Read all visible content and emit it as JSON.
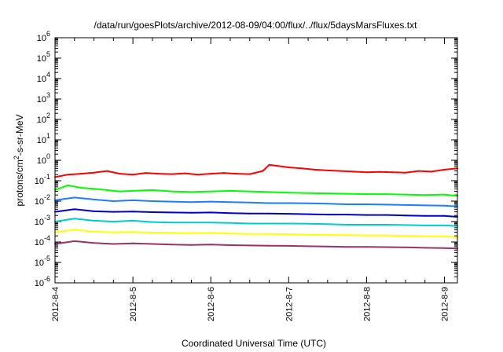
{
  "chart_data": {
    "type": "line",
    "title": "/data/run/goesPlots/archive/2012-08-09/04:00/flux/../flux/5daysMarsFluxes.txt",
    "xlabel": "Coordinated Universal Time (UTC)",
    "ylabel": "protons/cm2-s-sr-MeV",
    "ylabel_parts": {
      "base": "protons/cm",
      "sup": "2",
      "rest": "-s-sr-MeV"
    },
    "yscale": "log",
    "ylim": [
      1e-06,
      1000000.0
    ],
    "y_ticks": [
      {
        "base": "10",
        "exp": "-6",
        "value": -6
      },
      {
        "base": "10",
        "exp": "-5",
        "value": -5
      },
      {
        "base": "10",
        "exp": "-4",
        "value": -4
      },
      {
        "base": "10",
        "exp": "-3",
        "value": -3
      },
      {
        "base": "10",
        "exp": "-2",
        "value": -2
      },
      {
        "base": "10",
        "exp": "-1",
        "value": -1
      },
      {
        "base": "10",
        "exp": "0",
        "value": 0
      },
      {
        "base": "10",
        "exp": "1",
        "value": 1
      },
      {
        "base": "10",
        "exp": "2",
        "value": 2
      },
      {
        "base": "10",
        "exp": "3",
        "value": 3
      },
      {
        "base": "10",
        "exp": "4",
        "value": 4
      },
      {
        "base": "10",
        "exp": "5",
        "value": 5
      },
      {
        "base": "10",
        "exp": "6",
        "value": 6
      }
    ],
    "x_ticks": [
      "2012-8-4",
      "2012-8-5",
      "2012-8-6",
      "2012-8-7",
      "2012-8-8",
      "2012-8-9"
    ],
    "xlim": [
      "2012-08-04T00:00",
      "2012-08-09T04:00"
    ],
    "grid": false,
    "series": [
      {
        "color": "#ff0000",
        "x": [
          "2012-08-04T00:00",
          "2012-08-04T04:00",
          "2012-08-04T08:00",
          "2012-08-04T12:00",
          "2012-08-04T16:00",
          "2012-08-04T20:00",
          "2012-08-05T00:00",
          "2012-08-05T04:00",
          "2012-08-05T08:00",
          "2012-08-05T12:00",
          "2012-08-05T16:00",
          "2012-08-05T20:00",
          "2012-08-06T00:00",
          "2012-08-06T04:00",
          "2012-08-06T08:00",
          "2012-08-06T12:00",
          "2012-08-06T16:00",
          "2012-08-06T18:00",
          "2012-08-07T00:00",
          "2012-08-07T04:00",
          "2012-08-07T08:00",
          "2012-08-07T12:00",
          "2012-08-07T16:00",
          "2012-08-07T20:00",
          "2012-08-08T00:00",
          "2012-08-08T04:00",
          "2012-08-08T08:00",
          "2012-08-08T12:00",
          "2012-08-08T16:00",
          "2012-08-08T20:00",
          "2012-08-09T00:00",
          "2012-08-09T04:00"
        ],
        "values": [
          0.15,
          0.2,
          0.22,
          0.25,
          0.3,
          0.22,
          0.2,
          0.24,
          0.22,
          0.21,
          0.23,
          0.2,
          0.22,
          0.24,
          0.22,
          0.21,
          0.3,
          0.6,
          0.45,
          0.4,
          0.35,
          0.32,
          0.3,
          0.28,
          0.26,
          0.27,
          0.26,
          0.25,
          0.3,
          0.28,
          0.35,
          0.4
        ]
      },
      {
        "color": "#00ff00",
        "x": [
          "2012-08-04T00:00",
          "2012-08-04T04:00",
          "2012-08-04T08:00",
          "2012-08-04T12:00",
          "2012-08-04T16:00",
          "2012-08-04T20:00",
          "2012-08-05T00:00",
          "2012-08-05T06:00",
          "2012-08-05T12:00",
          "2012-08-05T18:00",
          "2012-08-06T00:00",
          "2012-08-06T06:00",
          "2012-08-06T12:00",
          "2012-08-06T18:00",
          "2012-08-07T00:00",
          "2012-08-07T06:00",
          "2012-08-07T12:00",
          "2012-08-07T18:00",
          "2012-08-08T00:00",
          "2012-08-08T06:00",
          "2012-08-08T12:00",
          "2012-08-08T18:00",
          "2012-08-09T00:00",
          "2012-08-09T04:00"
        ],
        "values": [
          0.035,
          0.06,
          0.045,
          0.04,
          0.035,
          0.03,
          0.032,
          0.035,
          0.03,
          0.028,
          0.03,
          0.032,
          0.03,
          0.028,
          0.026,
          0.025,
          0.024,
          0.023,
          0.022,
          0.022,
          0.021,
          0.02,
          0.021,
          0.018
        ]
      },
      {
        "color": "#1e7cff",
        "x": [
          "2012-08-04T00:00",
          "2012-08-04T06:00",
          "2012-08-04T12:00",
          "2012-08-04T18:00",
          "2012-08-05T00:00",
          "2012-08-05T06:00",
          "2012-08-05T12:00",
          "2012-08-05T18:00",
          "2012-08-06T00:00",
          "2012-08-06T06:00",
          "2012-08-06T12:00",
          "2012-08-06T18:00",
          "2012-08-07T00:00",
          "2012-08-07T06:00",
          "2012-08-07T12:00",
          "2012-08-07T18:00",
          "2012-08-08T00:00",
          "2012-08-08T06:00",
          "2012-08-08T12:00",
          "2012-08-08T18:00",
          "2012-08-09T00:00",
          "2012-08-09T04:00"
        ],
        "values": [
          0.011,
          0.015,
          0.012,
          0.01,
          0.011,
          0.01,
          0.0095,
          0.009,
          0.0095,
          0.009,
          0.0085,
          0.008,
          0.008,
          0.0078,
          0.0075,
          0.007,
          0.007,
          0.0068,
          0.0065,
          0.0062,
          0.006,
          0.0055
        ]
      },
      {
        "color": "#0000cc",
        "x": [
          "2012-08-04T00:00",
          "2012-08-04T06:00",
          "2012-08-04T12:00",
          "2012-08-04T18:00",
          "2012-08-05T00:00",
          "2012-08-05T06:00",
          "2012-08-05T12:00",
          "2012-08-05T18:00",
          "2012-08-06T00:00",
          "2012-08-06T06:00",
          "2012-08-06T12:00",
          "2012-08-06T18:00",
          "2012-08-07T00:00",
          "2012-08-07T06:00",
          "2012-08-07T12:00",
          "2012-08-07T18:00",
          "2012-08-08T00:00",
          "2012-08-08T06:00",
          "2012-08-08T12:00",
          "2012-08-08T18:00",
          "2012-08-09T00:00",
          "2012-08-09T04:00"
        ],
        "values": [
          0.003,
          0.004,
          0.0032,
          0.003,
          0.0031,
          0.0029,
          0.0028,
          0.0027,
          0.0028,
          0.0026,
          0.0025,
          0.0025,
          0.0024,
          0.0023,
          0.0022,
          0.0022,
          0.0021,
          0.0021,
          0.002,
          0.0019,
          0.0019,
          0.0017
        ]
      },
      {
        "color": "#00cccc",
        "x": [
          "2012-08-04T00:00",
          "2012-08-04T06:00",
          "2012-08-04T12:00",
          "2012-08-04T18:00",
          "2012-08-05T00:00",
          "2012-08-05T06:00",
          "2012-08-05T12:00",
          "2012-08-05T18:00",
          "2012-08-06T00:00",
          "2012-08-06T06:00",
          "2012-08-06T12:00",
          "2012-08-06T18:00",
          "2012-08-07T00:00",
          "2012-08-07T06:00",
          "2012-08-07T12:00",
          "2012-08-07T18:00",
          "2012-08-08T00:00",
          "2012-08-08T06:00",
          "2012-08-08T12:00",
          "2012-08-08T18:00",
          "2012-08-09T00:00",
          "2012-08-09T04:00"
        ],
        "values": [
          0.001,
          0.0014,
          0.0011,
          0.001,
          0.0011,
          0.00095,
          0.0009,
          0.0009,
          0.0009,
          0.00085,
          0.0008,
          0.0008,
          0.0008,
          0.00078,
          0.00075,
          0.0007,
          0.0007,
          0.0007,
          0.00068,
          0.00065,
          0.00065,
          0.0006
        ]
      },
      {
        "color": "#ffff00",
        "x": [
          "2012-08-04T00:00",
          "2012-08-04T06:00",
          "2012-08-04T12:00",
          "2012-08-04T18:00",
          "2012-08-05T00:00",
          "2012-08-05T06:00",
          "2012-08-05T12:00",
          "2012-08-05T18:00",
          "2012-08-06T00:00",
          "2012-08-06T06:00",
          "2012-08-06T12:00",
          "2012-08-06T18:00",
          "2012-08-07T00:00",
          "2012-08-07T06:00",
          "2012-08-07T12:00",
          "2012-08-07T18:00",
          "2012-08-08T00:00",
          "2012-08-08T06:00",
          "2012-08-08T12:00",
          "2012-08-08T18:00",
          "2012-08-09T00:00",
          "2012-08-09T04:00"
        ],
        "values": [
          0.0003,
          0.0004,
          0.00032,
          0.0003,
          0.00031,
          0.00029,
          0.00028,
          0.00027,
          0.00028,
          0.00026,
          0.00025,
          0.00025,
          0.00024,
          0.00023,
          0.00022,
          0.00022,
          0.00021,
          0.00021,
          0.0002,
          0.00019,
          0.00019,
          0.00017
        ]
      },
      {
        "color": "#993366",
        "x": [
          "2012-08-04T00:00",
          "2012-08-04T06:00",
          "2012-08-04T12:00",
          "2012-08-04T18:00",
          "2012-08-05T00:00",
          "2012-08-05T06:00",
          "2012-08-05T12:00",
          "2012-08-05T18:00",
          "2012-08-06T00:00",
          "2012-08-06T06:00",
          "2012-08-06T12:00",
          "2012-08-06T18:00",
          "2012-08-07T00:00",
          "2012-08-07T06:00",
          "2012-08-07T12:00",
          "2012-08-07T18:00",
          "2012-08-08T00:00",
          "2012-08-08T06:00",
          "2012-08-08T12:00",
          "2012-08-08T18:00",
          "2012-08-09T00:00",
          "2012-08-09T04:00"
        ],
        "values": [
          8e-05,
          0.00011,
          9e-05,
          8e-05,
          8.5e-05,
          8e-05,
          7.5e-05,
          7.2e-05,
          7.5e-05,
          7e-05,
          6.8e-05,
          6.6e-05,
          6.5e-05,
          6.2e-05,
          6e-05,
          5.8e-05,
          5.8e-05,
          5.6e-05,
          5.5e-05,
          5.2e-05,
          5e-05,
          4.8e-05
        ]
      }
    ]
  }
}
